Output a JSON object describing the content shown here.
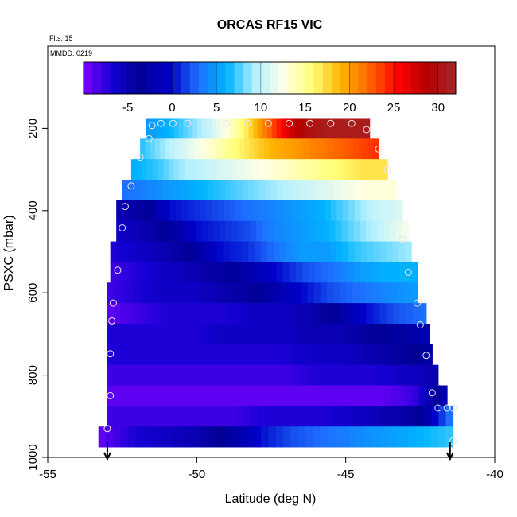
{
  "chart_data": {
    "type": "heatmap",
    "title": "ORCAS RF15 VIC",
    "flight_label": "Flts: 15",
    "date_label": "MMDD: 0219",
    "xlabel": "Latitude (deg N)",
    "ylabel": "PSXC (mbar)",
    "xlim": [
      -55,
      -40
    ],
    "ylim": [
      1000,
      0
    ],
    "x_ticks": [
      -55,
      -50,
      -45,
      -40
    ],
    "y_ticks": [
      200,
      400,
      600,
      800,
      1000
    ],
    "colorbar": {
      "range": [
        -10,
        32
      ],
      "ticks": [
        -5,
        0,
        5,
        10,
        15,
        20,
        25,
        30
      ],
      "colors": [
        "#7f00ff",
        "#1400d2",
        "#000096",
        "#0000c8",
        "#1e6eff",
        "#00b4ff",
        "#b4f0ff",
        "#ffffe6",
        "#ffff78",
        "#ffb400",
        "#ff6400",
        "#ff0000",
        "#b40000",
        "#a52828"
      ]
    },
    "bands": [
      {
        "p": 200,
        "lat_min": -51.7,
        "lat_max": -44.2,
        "values": [
          5,
          6,
          8,
          10,
          13,
          17,
          22,
          27,
          30,
          31,
          31,
          31
        ]
      },
      {
        "p": 250,
        "lat_min": -51.9,
        "lat_max": -43.9,
        "values": [
          7,
          9,
          11,
          13,
          15,
          17,
          19,
          20,
          21,
          22,
          23,
          24
        ]
      },
      {
        "p": 300,
        "lat_min": -52.2,
        "lat_max": -43.6,
        "values": [
          6,
          7,
          9,
          10,
          11,
          12,
          13,
          14,
          15,
          16,
          17,
          17
        ]
      },
      {
        "p": 350,
        "lat_min": -52.5,
        "lat_max": -43.3,
        "values": [
          3,
          4,
          5,
          6,
          7,
          8,
          9,
          10,
          11,
          12,
          13,
          13
        ]
      },
      {
        "p": 400,
        "lat_min": -52.7,
        "lat_max": -43.1,
        "values": [
          -5,
          -4,
          0,
          1,
          2,
          3,
          4,
          5,
          6,
          8,
          10,
          11
        ]
      },
      {
        "p": 450,
        "lat_min": -52.7,
        "lat_max": -42.9,
        "values": [
          -6,
          -5,
          -3,
          0,
          1,
          2,
          4,
          5,
          6,
          8,
          10,
          12
        ]
      },
      {
        "p": 500,
        "lat_min": -52.9,
        "lat_max": -42.8,
        "values": [
          -7,
          -6,
          -5,
          -3,
          0,
          1,
          3,
          5,
          5,
          7,
          8,
          9
        ]
      },
      {
        "p": 550,
        "lat_min": -52.9,
        "lat_max": -42.6,
        "values": [
          -8,
          -7,
          -6,
          -5,
          -4,
          -2,
          0,
          2,
          3,
          5,
          6,
          6
        ]
      },
      {
        "p": 600,
        "lat_min": -53.0,
        "lat_max": -42.6,
        "values": [
          -8,
          -7,
          -6,
          -6,
          -5,
          -4,
          -2,
          0,
          2,
          3,
          4,
          5
        ]
      },
      {
        "p": 650,
        "lat_min": -53.0,
        "lat_max": -42.3,
        "values": [
          -9,
          -8,
          -7,
          -7,
          -7,
          -6,
          -6,
          -5,
          -3,
          0,
          2,
          3
        ]
      },
      {
        "p": 700,
        "lat_min": -53.0,
        "lat_max": -42.2,
        "values": [
          -7,
          -7,
          -7,
          -7,
          -6,
          -6,
          -6,
          -5,
          -5,
          -4,
          -3,
          -2
        ]
      },
      {
        "p": 750,
        "lat_min": -53.0,
        "lat_max": -42.1,
        "values": [
          -7,
          -7,
          -7,
          -7,
          -7,
          -7,
          -7,
          -6,
          -6,
          -5,
          -4,
          -3
        ]
      },
      {
        "p": 800,
        "lat_min": -53.0,
        "lat_max": -41.9,
        "values": [
          -8,
          -8,
          -8,
          -8,
          -8,
          -8,
          -8,
          -7,
          -7,
          -7,
          -6,
          -5
        ]
      },
      {
        "p": 850,
        "lat_min": -53.0,
        "lat_max": -41.6,
        "values": [
          -9,
          -9,
          -9,
          -9,
          -9,
          -9,
          -9,
          -9,
          -9,
          -9,
          -8,
          -2
        ]
      },
      {
        "p": 900,
        "lat_min": -53.0,
        "lat_max": -41.4,
        "values": [
          -8,
          -8,
          -8,
          -8,
          -8,
          -7,
          -7,
          -7,
          -6,
          -5,
          -4,
          3
        ]
      },
      {
        "p": 950,
        "lat_min": -53.3,
        "lat_max": -41.4,
        "values": [
          -9,
          -7,
          -6,
          -5,
          -3,
          0,
          2,
          3,
          4,
          5,
          6,
          7
        ]
      }
    ],
    "flight_points": [
      {
        "lat": -53.0,
        "p": 930
      },
      {
        "lat": -52.9,
        "p": 850
      },
      {
        "lat": -52.9,
        "p": 748
      },
      {
        "lat": -52.85,
        "p": 668
      },
      {
        "lat": -52.8,
        "p": 625
      },
      {
        "lat": -52.65,
        "p": 545
      },
      {
        "lat": -52.5,
        "p": 442
      },
      {
        "lat": -52.4,
        "p": 390
      },
      {
        "lat": -52.2,
        "p": 340
      },
      {
        "lat": -51.9,
        "p": 270
      },
      {
        "lat": -51.6,
        "p": 225
      },
      {
        "lat": -51.5,
        "p": 193
      },
      {
        "lat": -51.2,
        "p": 188
      },
      {
        "lat": -50.8,
        "p": 188
      },
      {
        "lat": -50.3,
        "p": 188
      },
      {
        "lat": -49.7,
        "p": 188
      },
      {
        "lat": -49.0,
        "p": 188
      },
      {
        "lat": -48.3,
        "p": 188
      },
      {
        "lat": -47.6,
        "p": 188
      },
      {
        "lat": -46.9,
        "p": 188
      },
      {
        "lat": -46.2,
        "p": 188
      },
      {
        "lat": -45.5,
        "p": 188
      },
      {
        "lat": -44.8,
        "p": 188
      },
      {
        "lat": -44.3,
        "p": 203
      },
      {
        "lat": -43.9,
        "p": 250
      },
      {
        "lat": -43.6,
        "p": 300
      },
      {
        "lat": -43.1,
        "p": 470
      },
      {
        "lat": -42.9,
        "p": 550
      },
      {
        "lat": -42.6,
        "p": 625
      },
      {
        "lat": -42.5,
        "p": 678
      },
      {
        "lat": -42.3,
        "p": 752
      },
      {
        "lat": -42.1,
        "p": 843
      },
      {
        "lat": -41.9,
        "p": 880
      },
      {
        "lat": -41.6,
        "p": 880
      },
      {
        "lat": -41.4,
        "p": 880
      },
      {
        "lat": -41.4,
        "p": 960
      }
    ],
    "arrows": [
      {
        "lat": -53.0
      },
      {
        "lat": -41.5
      }
    ]
  }
}
